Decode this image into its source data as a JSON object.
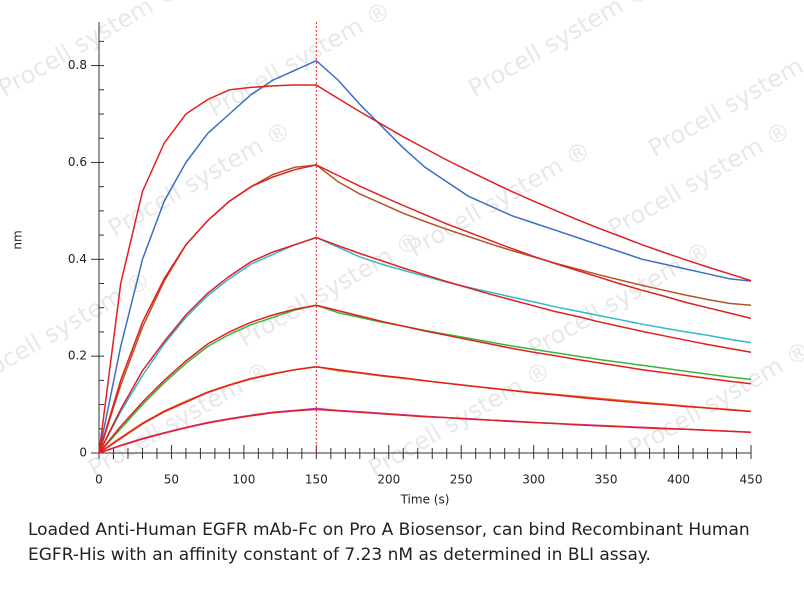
{
  "chart_data": {
    "type": "line",
    "xlabel": "Time (s)",
    "ylabel": "nm",
    "x": [
      0,
      15,
      30,
      45,
      60,
      75,
      90,
      105,
      120,
      135,
      150,
      165,
      180,
      195,
      210,
      225,
      240,
      255,
      270,
      285,
      300,
      315,
      330,
      345,
      360,
      375,
      390,
      405,
      420,
      435,
      450
    ],
    "series": [
      {
        "color": "#3b6fc4",
        "values": [
          0,
          0.22,
          0.4,
          0.52,
          0.6,
          0.66,
          0.7,
          0.74,
          0.77,
          0.79,
          0.81,
          0.77,
          0.72,
          0.675,
          0.63,
          0.59,
          0.56,
          0.53,
          0.51,
          0.49,
          0.475,
          0.46,
          0.445,
          0.43,
          0.415,
          0.4,
          0.39,
          0.38,
          0.37,
          0.36,
          0.355
        ]
      },
      {
        "color": "#b5532a",
        "values": [
          0,
          0.14,
          0.26,
          0.355,
          0.43,
          0.48,
          0.52,
          0.55,
          0.575,
          0.59,
          0.595,
          0.56,
          0.535,
          0.515,
          0.495,
          0.478,
          0.462,
          0.447,
          0.432,
          0.418,
          0.405,
          0.392,
          0.38,
          0.368,
          0.357,
          0.346,
          0.336,
          0.326,
          0.317,
          0.309,
          0.305
        ]
      },
      {
        "color": "#36b8c8",
        "values": [
          0,
          0.085,
          0.16,
          0.225,
          0.28,
          0.325,
          0.36,
          0.39,
          0.41,
          0.43,
          0.445,
          0.425,
          0.405,
          0.39,
          0.377,
          0.365,
          0.353,
          0.342,
          0.332,
          0.322,
          0.312,
          0.302,
          0.293,
          0.284,
          0.275,
          0.266,
          0.258,
          0.25,
          0.243,
          0.235,
          0.228
        ]
      },
      {
        "color": "#3cb43c",
        "values": [
          0,
          0.05,
          0.1,
          0.145,
          0.185,
          0.22,
          0.245,
          0.265,
          0.28,
          0.295,
          0.305,
          0.29,
          0.28,
          0.27,
          0.262,
          0.253,
          0.245,
          0.237,
          0.229,
          0.221,
          0.214,
          0.207,
          0.2,
          0.193,
          0.187,
          0.181,
          0.175,
          0.169,
          0.163,
          0.157,
          0.152
        ]
      },
      {
        "color": "#f07020",
        "values": [
          0,
          0.032,
          0.062,
          0.087,
          0.107,
          0.126,
          0.141,
          0.154,
          0.164,
          0.172,
          0.178,
          0.17,
          0.165,
          0.159,
          0.154,
          0.149,
          0.144,
          0.139,
          0.134,
          0.129,
          0.125,
          0.121,
          0.117,
          0.113,
          0.109,
          0.105,
          0.101,
          0.097,
          0.093,
          0.09,
          0.086
        ]
      },
      {
        "color": "#d040c0",
        "values": [
          0,
          0.016,
          0.03,
          0.042,
          0.053,
          0.063,
          0.071,
          0.078,
          0.084,
          0.088,
          0.092,
          0.088,
          0.085,
          0.082,
          0.079,
          0.076,
          0.073,
          0.071,
          0.068,
          0.066,
          0.063,
          0.061,
          0.059,
          0.057,
          0.055,
          0.053,
          0.051,
          0.049,
          0.047,
          0.045,
          0.043
        ]
      },
      {
        "color": "#e02020",
        "values": [
          0,
          0.35,
          0.54,
          0.64,
          0.7,
          0.73,
          0.75,
          0.755,
          0.758,
          0.76,
          0.76,
          0.732,
          0.705,
          0.679,
          0.653,
          0.629,
          0.605,
          0.583,
          0.561,
          0.54,
          0.52,
          0.501,
          0.482,
          0.464,
          0.447,
          0.43,
          0.414,
          0.399,
          0.384,
          0.37,
          0.356
        ]
      },
      {
        "color": "#e02020",
        "values": [
          0,
          0.15,
          0.27,
          0.36,
          0.43,
          0.48,
          0.52,
          0.55,
          0.57,
          0.585,
          0.595,
          0.573,
          0.551,
          0.531,
          0.511,
          0.492,
          0.473,
          0.456,
          0.439,
          0.422,
          0.406,
          0.391,
          0.377,
          0.363,
          0.349,
          0.336,
          0.324,
          0.311,
          0.3,
          0.289,
          0.278
        ]
      },
      {
        "color": "#e02020",
        "values": [
          0,
          0.09,
          0.17,
          0.23,
          0.285,
          0.33,
          0.365,
          0.395,
          0.415,
          0.43,
          0.445,
          0.428,
          0.412,
          0.397,
          0.382,
          0.368,
          0.354,
          0.341,
          0.328,
          0.316,
          0.304,
          0.292,
          0.282,
          0.271,
          0.261,
          0.251,
          0.242,
          0.233,
          0.224,
          0.216,
          0.208
        ]
      },
      {
        "color": "#e02020",
        "values": [
          0,
          0.055,
          0.105,
          0.15,
          0.19,
          0.225,
          0.25,
          0.27,
          0.285,
          0.297,
          0.305,
          0.294,
          0.283,
          0.272,
          0.262,
          0.252,
          0.243,
          0.234,
          0.225,
          0.216,
          0.208,
          0.201,
          0.193,
          0.186,
          0.179,
          0.172,
          0.166,
          0.16,
          0.154,
          0.148,
          0.143
        ]
      },
      {
        "color": "#e02020",
        "values": [
          0,
          0.03,
          0.06,
          0.085,
          0.105,
          0.125,
          0.14,
          0.153,
          0.163,
          0.172,
          0.178,
          0.172,
          0.166,
          0.16,
          0.155,
          0.149,
          0.144,
          0.139,
          0.134,
          0.129,
          0.124,
          0.12,
          0.115,
          0.111,
          0.107,
          0.103,
          0.1,
          0.096,
          0.093,
          0.089,
          0.086
        ]
      },
      {
        "color": "#e02020",
        "values": [
          0,
          0.015,
          0.029,
          0.041,
          0.052,
          0.062,
          0.07,
          0.077,
          0.083,
          0.087,
          0.09,
          0.087,
          0.084,
          0.081,
          0.078,
          0.075,
          0.073,
          0.07,
          0.068,
          0.065,
          0.063,
          0.061,
          0.058,
          0.056,
          0.054,
          0.052,
          0.05,
          0.049,
          0.047,
          0.045,
          0.043
        ]
      }
    ],
    "xlim": [
      0,
      450
    ],
    "ylim": [
      0,
      0.89
    ],
    "xticks": [
      0,
      50,
      100,
      150,
      200,
      250,
      300,
      350,
      400,
      450
    ],
    "yticks": [
      0,
      0.2,
      0.4,
      0.6,
      0.8
    ],
    "xminorticks": [
      10,
      20,
      30,
      40,
      60,
      70,
      80,
      90,
      110,
      120,
      130,
      140,
      160,
      170,
      180,
      190,
      210,
      220,
      230,
      240,
      260,
      270,
      280,
      290,
      310,
      320,
      330,
      340,
      360,
      370,
      380,
      390,
      410,
      420,
      430,
      440
    ],
    "yminorticks": [
      0.05,
      0.1,
      0.15,
      0.25,
      0.3,
      0.35,
      0.45,
      0.5,
      0.55,
      0.65,
      0.7,
      0.75,
      0.85
    ],
    "vline": 150,
    "vline_color": "#e02020"
  },
  "watermark": "Procell system ®",
  "caption": [
    "Loaded Anti-Human EGFR mAb-Fc on Pro A Biosensor, can bind Recombinant Human",
    "EGFR-His with an affinity constant of 7.23 nM as determined in BLI assay."
  ]
}
